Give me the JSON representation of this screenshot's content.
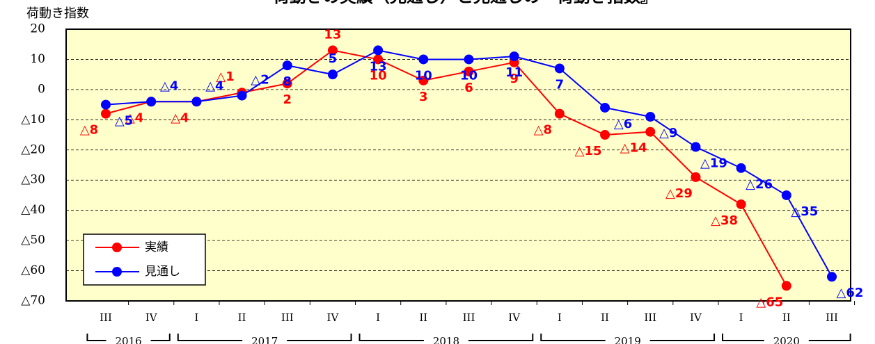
{
  "chart_data": {
    "type": "line",
    "title": "荷動きの実績（見通し）と見通しの『荷動き指数』",
    "y_label": "荷動き指数",
    "categories": [
      "III",
      "IV",
      "I",
      "II",
      "III",
      "IV",
      "I",
      "II",
      "III",
      "IV",
      "I",
      "II",
      "III",
      "IV",
      "I",
      "II",
      "III"
    ],
    "year_groups": [
      {
        "label": "2016",
        "span": 2
      },
      {
        "label": "2017",
        "span": 4
      },
      {
        "label": "2018",
        "span": 4
      },
      {
        "label": "2019",
        "span": 4
      },
      {
        "label": "2020",
        "span": 3
      }
    ],
    "series": [
      {
        "name": "実績",
        "color": "#ff0000",
        "values": [
          -8,
          -4,
          -4,
          -1,
          2,
          13,
          10,
          3,
          6,
          9,
          -8,
          -15,
          -14,
          -29,
          -38,
          -65,
          null
        ],
        "value_labels": [
          "△8",
          "△4",
          "△4",
          "△1",
          "2",
          "13",
          "10",
          "3",
          "6",
          "9",
          "△8",
          "△15",
          "△14",
          "△29",
          "△38",
          "△65",
          null
        ]
      },
      {
        "name": "見通し",
        "color": "#0000ff",
        "values": [
          -5,
          -4,
          -4,
          -2,
          8,
          5,
          13,
          10,
          10,
          11,
          7,
          -6,
          -9,
          -19,
          -26,
          -35,
          -62
        ],
        "value_labels": [
          "△5",
          "△4",
          "△4",
          "△2",
          "8",
          "5",
          "13",
          "10",
          "10",
          "11",
          "7",
          "△6",
          "△9",
          "△19",
          "△26",
          "△35",
          "△62"
        ]
      }
    ],
    "ylim": [
      -70,
      20
    ],
    "yticks": [
      {
        "value": -70,
        "label": "△70"
      },
      {
        "value": -60,
        "label": "△60"
      },
      {
        "value": -50,
        "label": "△50"
      },
      {
        "value": -40,
        "label": "△40"
      },
      {
        "value": -30,
        "label": "△30"
      },
      {
        "value": -20,
        "label": "△20"
      },
      {
        "value": -10,
        "label": "△10"
      },
      0,
      10,
      20
    ],
    "grid": true,
    "legend": "lower left",
    "background": "#ffffcc"
  }
}
